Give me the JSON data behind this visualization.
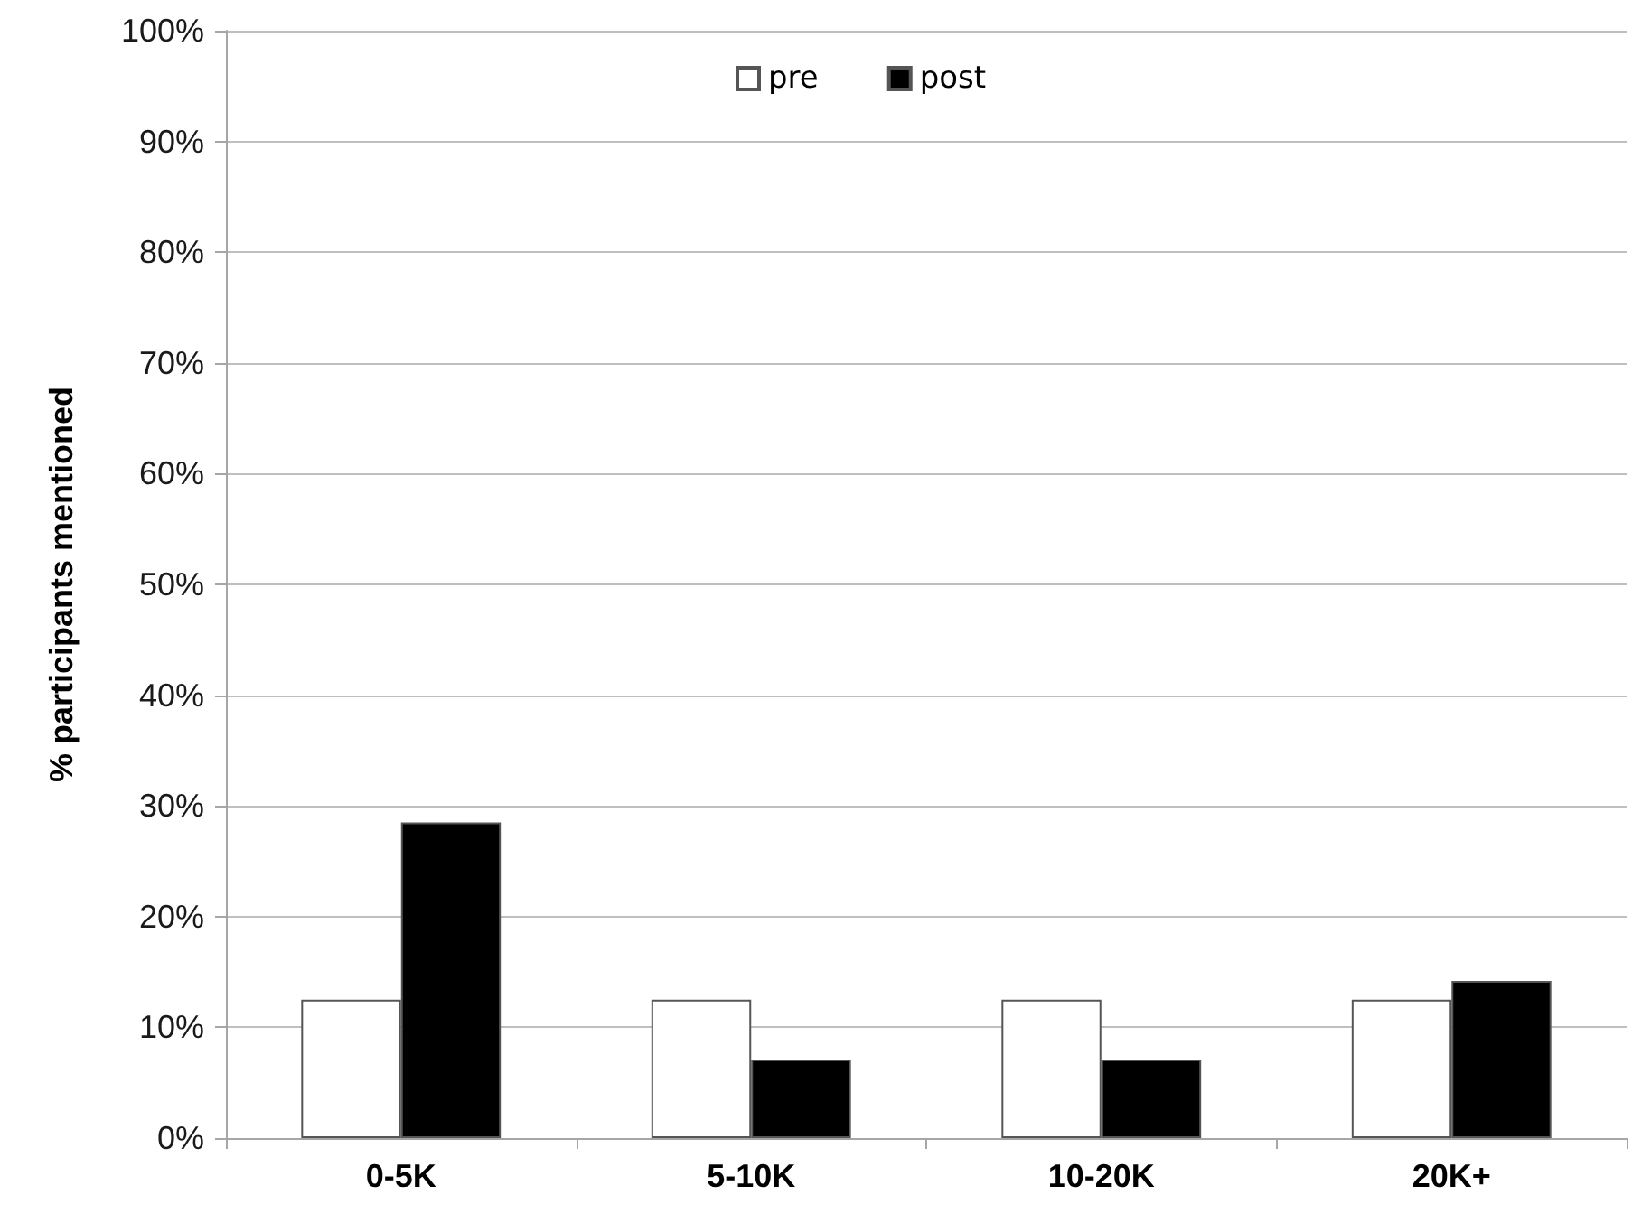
{
  "chart_data": {
    "type": "bar",
    "ylabel": "% participants mentioned",
    "categories": [
      "0-5K",
      "5-10K",
      "10-20K",
      "20K+"
    ],
    "series": [
      {
        "name": "pre",
        "color": "#ffffff",
        "values": [
          12.5,
          12.5,
          12.5,
          12.5
        ]
      },
      {
        "name": "post",
        "color": "#000000",
        "values": [
          28.5,
          7.1,
          7.1,
          14.2
        ]
      }
    ],
    "ylim": [
      0,
      100
    ],
    "yticks": [
      {
        "value": 0,
        "label": "0%"
      },
      {
        "value": 10,
        "label": "10%"
      },
      {
        "value": 20,
        "label": "20%"
      },
      {
        "value": 30,
        "label": "30%"
      },
      {
        "value": 40,
        "label": "40%"
      },
      {
        "value": 50,
        "label": "50%"
      },
      {
        "value": 60,
        "label": "60%"
      },
      {
        "value": 70,
        "label": "70%"
      },
      {
        "value": 80,
        "label": "80%"
      },
      {
        "value": 90,
        "label": "90%"
      },
      {
        "value": 100,
        "label": "100%"
      }
    ],
    "grid": "y",
    "legend": "top"
  }
}
